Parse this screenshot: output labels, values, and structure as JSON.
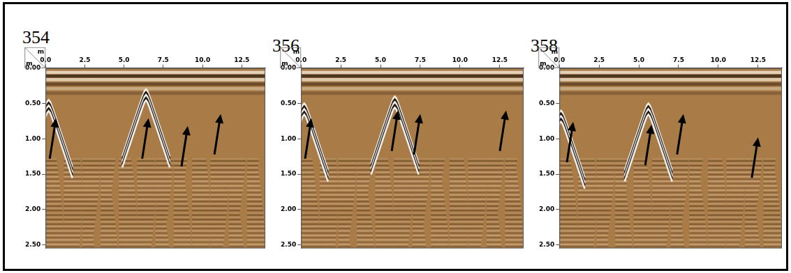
{
  "chart_data": [
    {
      "type": "scatter",
      "title": "354",
      "x_label": "m",
      "y_label": "m",
      "xlim": [
        0,
        14
      ],
      "ylim": [
        0,
        2.55
      ],
      "xticks": [
        {
          "value": 0,
          "label": "0.0"
        },
        2.5,
        {
          "value": 5,
          "label": "5.0"
        },
        7.5,
        {
          "value": 10,
          "label": "10.0"
        },
        12.5
      ],
      "yticks": [
        {
          "value": 0,
          "label": "0.00"
        },
        {
          "value": 0.5,
          "label": "0.50"
        },
        {
          "value": 1,
          "label": "1.00"
        },
        {
          "value": 1.5,
          "label": "1.50"
        },
        {
          "value": 2,
          "label": "2.00"
        },
        {
          "value": 2.5,
          "label": "2.50"
        }
      ],
      "grid": false,
      "hyperbolas": [
        {
          "x": 0.2,
          "depth": 0.45
        },
        {
          "x": 6.4,
          "depth": 0.3
        }
      ],
      "arrows": [
        {
          "x": 0.67,
          "depth": 0.71
        },
        {
          "x": 6.56,
          "depth": 0.71
        },
        {
          "x": 9.06,
          "depth": 0.82
        },
        {
          "x": 11.16,
          "depth": 0.65
        }
      ]
    },
    {
      "type": "scatter",
      "title": "356",
      "x_label": "m",
      "y_label": "m",
      "xlim": [
        0,
        14
      ],
      "ylim": [
        0,
        2.55
      ],
      "xticks": [
        {
          "value": 0,
          "label": "0.0"
        },
        2.5,
        {
          "value": 5,
          "label": "5.0"
        },
        7.5,
        {
          "value": 10,
          "label": "10.0"
        },
        12.5
      ],
      "yticks": [
        {
          "value": 0,
          "label": "0.00"
        },
        {
          "value": 0.5,
          "label": "0.50"
        },
        {
          "value": 1,
          "label": "1.00"
        },
        {
          "value": 1.5,
          "label": "1.50"
        },
        {
          "value": 2,
          "label": "2.00"
        },
        {
          "value": 2.5,
          "label": "2.50"
        }
      ],
      "grid": false,
      "hyperbolas": [
        {
          "x": 0.2,
          "depth": 0.5
        },
        {
          "x": 5.9,
          "depth": 0.4
        }
      ],
      "arrows": [
        {
          "x": 0.65,
          "depth": 0.71
        },
        {
          "x": 6.1,
          "depth": 0.6
        },
        {
          "x": 7.5,
          "depth": 0.65
        },
        {
          "x": 12.9,
          "depth": 0.6
        }
      ]
    },
    {
      "type": "scatter",
      "title": "358",
      "x_label": "m",
      "y_label": "m",
      "xlim": [
        0,
        14
      ],
      "ylim": [
        0,
        2.55
      ],
      "xticks": [
        {
          "value": 0,
          "label": "0.0"
        },
        2.5,
        {
          "value": 5,
          "label": "5.0"
        },
        7.5,
        {
          "value": 10,
          "label": "10.0"
        },
        12.5
      ],
      "yticks": [
        {
          "value": 0,
          "label": "0.00"
        },
        {
          "value": 0.5,
          "label": "0.50"
        },
        {
          "value": 1,
          "label": "1.00"
        },
        {
          "value": 1.5,
          "label": "1.50"
        },
        {
          "value": 2,
          "label": "2.00"
        },
        {
          "value": 2.5,
          "label": "2.50"
        }
      ],
      "grid": false,
      "hyperbolas": [
        {
          "x": 0.1,
          "depth": 0.6
        },
        {
          "x": 5.6,
          "depth": 0.5
        }
      ],
      "arrows": [
        {
          "x": 0.87,
          "depth": 0.76
        },
        {
          "x": 5.8,
          "depth": 0.8
        },
        {
          "x": 7.8,
          "depth": 0.65
        },
        {
          "x": 12.5,
          "depth": 0.98
        }
      ]
    }
  ]
}
